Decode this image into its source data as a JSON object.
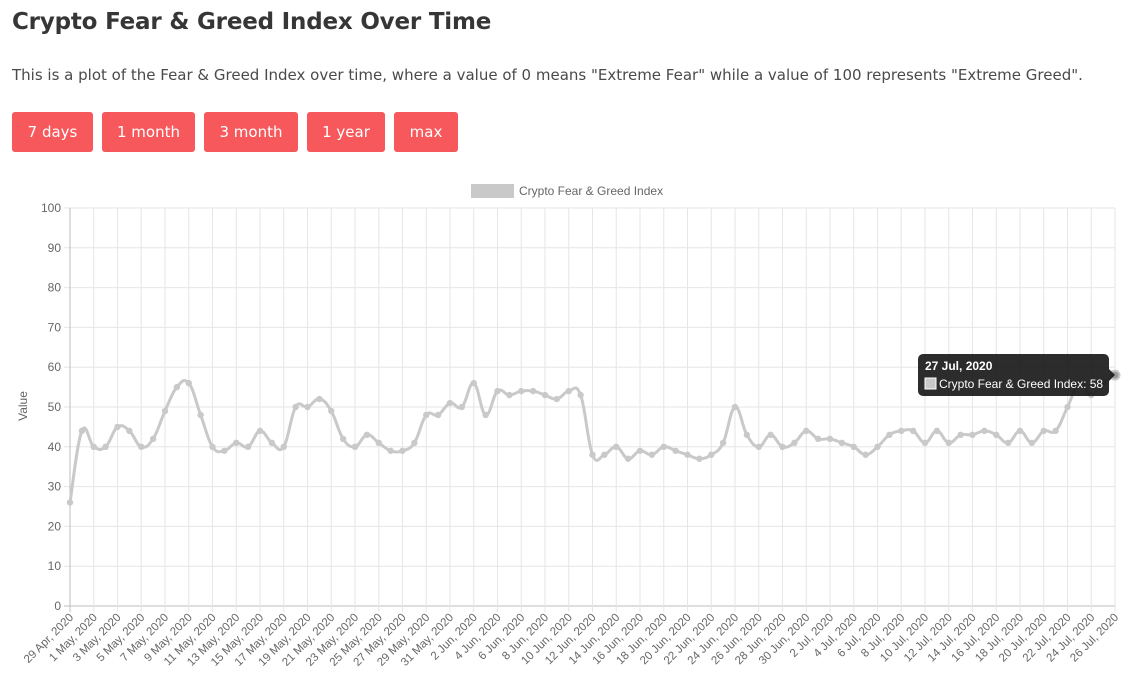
{
  "header": {
    "title": "Crypto Fear & Greed Index Over Time",
    "description": "This is a plot of the Fear & Greed Index over time, where a value of 0 means \"Extreme Fear\" while a value of 100 represents \"Extreme Greed\"."
  },
  "range_buttons": [
    "7 days",
    "1 month",
    "3 month",
    "1 year",
    "max"
  ],
  "colors": {
    "button": "#f7585b",
    "series": "#c9c9c9",
    "grid": "#e6e6e6",
    "tooltip_bg": "#1a1a1a"
  },
  "tooltip": {
    "title": "27 Jul, 2020",
    "label": "Crypto Fear & Greed Index: 58"
  },
  "chart_data": {
    "type": "line",
    "ylabel": "Value",
    "ylim": [
      0,
      100
    ],
    "yticks": [
      0,
      10,
      20,
      30,
      40,
      50,
      60,
      70,
      80,
      90,
      100
    ],
    "grid": true,
    "legend_position": "top",
    "series": [
      {
        "name": "Crypto Fear & Greed Index",
        "start_date": "29 Apr, 2020",
        "values": [
          26,
          44,
          40,
          40,
          45,
          44,
          40,
          42,
          49,
          55,
          56,
          48,
          40,
          39,
          41,
          40,
          44,
          41,
          40,
          50,
          50,
          52,
          49,
          42,
          40,
          43,
          41,
          39,
          39,
          41,
          48,
          48,
          51,
          50,
          56,
          48,
          54,
          53,
          54,
          54,
          53,
          52,
          54,
          53,
          38,
          38,
          40,
          37,
          39,
          38,
          40,
          39,
          38,
          37,
          38,
          41,
          50,
          43,
          40,
          43,
          40,
          41,
          44,
          42,
          42,
          41,
          40,
          38,
          40,
          43,
          44,
          44,
          41,
          44,
          41,
          43,
          43,
          44,
          43,
          41,
          44,
          41,
          44,
          44,
          50,
          56,
          53,
          56,
          58
        ]
      }
    ],
    "xtick_labels": [
      "29 Apr, 2020",
      "1 May, 2020",
      "3 May, 2020",
      "5 May, 2020",
      "7 May, 2020",
      "9 May, 2020",
      "11 May, 2020",
      "13 May, 2020",
      "15 May, 2020",
      "17 May, 2020",
      "19 May, 2020",
      "21 May, 2020",
      "23 May, 2020",
      "25 May, 2020",
      "27 May, 2020",
      "29 May, 2020",
      "31 May, 2020",
      "2 Jun, 2020",
      "4 Jun, 2020",
      "6 Jun, 2020",
      "8 Jun, 2020",
      "10 Jun, 2020",
      "12 Jun, 2020",
      "14 Jun, 2020",
      "16 Jun, 2020",
      "18 Jun, 2020",
      "20 Jun, 2020",
      "22 Jun, 2020",
      "24 Jun, 2020",
      "26 Jun, 2020",
      "28 Jun, 2020",
      "30 Jun, 2020",
      "2 Jul, 2020",
      "4 Jul, 2020",
      "6 Jul, 2020",
      "8 Jul, 2020",
      "10 Jul, 2020",
      "12 Jul, 2020",
      "14 Jul, 2020",
      "16 Jul, 2020",
      "18 Jul, 2020",
      "20 Jul, 2020",
      "22 Jul, 2020",
      "24 Jul, 2020",
      "26 Jul, 2020"
    ]
  }
}
